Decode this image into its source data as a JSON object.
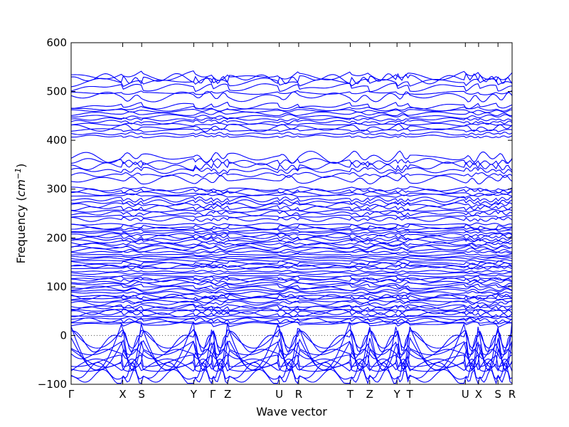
{
  "chart_data": {
    "type": "line",
    "title": "",
    "xlabel": "Wave vector",
    "ylabel": "Frequency (",
    "ylabel_unit": "cm",
    "ylabel_exp": "−1",
    "ylabel_close": ")",
    "ylim": [
      -100,
      600
    ],
    "yticks": [
      "−100",
      "0",
      "100",
      "200",
      "300",
      "400",
      "500",
      "600"
    ],
    "ytick_values": [
      -100,
      0,
      100,
      200,
      300,
      400,
      500,
      600
    ],
    "xlim": [
      0,
      1
    ],
    "high_symmetry_points": [
      {
        "label": "Γ",
        "x": 0.0
      },
      {
        "label": "X",
        "x": 0.117
      },
      {
        "label": "S",
        "x": 0.16
      },
      {
        "label": "Y",
        "x": 0.278
      },
      {
        "label": "Γ",
        "x": 0.321
      },
      {
        "label": "Z",
        "x": 0.355
      },
      {
        "label": "U",
        "x": 0.472
      },
      {
        "label": "R",
        "x": 0.516
      },
      {
        "label": "T",
        "x": 0.633
      },
      {
        "label": "Z",
        "x": 0.677
      },
      {
        "label": "Y",
        "x": 0.739
      },
      {
        "label": "T",
        "x": 0.768
      },
      {
        "label": "U",
        "x": 0.894
      },
      {
        "label": "X",
        "x": 0.924
      },
      {
        "label": "S",
        "x": 0.968
      },
      {
        "label": "R",
        "x": 1.0
      }
    ],
    "zero_line": true,
    "grid": false,
    "series_color": "#0000ff",
    "band_groups": [
      {
        "range": [
          -100,
          30
        ],
        "count": 12
      },
      {
        "range": [
          20,
          230
        ],
        "count": 48
      },
      {
        "range": [
          235,
          305
        ],
        "count": 12
      },
      {
        "range": [
          315,
          370
        ],
        "count": 6
      },
      {
        "range": [
          405,
          475
        ],
        "count": 12
      },
      {
        "range": [
          485,
          540
        ],
        "count": 6
      }
    ]
  }
}
